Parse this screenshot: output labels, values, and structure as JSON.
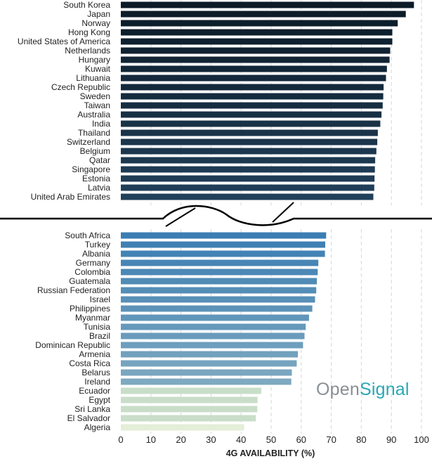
{
  "chart_data": {
    "type": "bar",
    "orientation": "horizontal",
    "xlabel": "4G AVAILABILITY (%)",
    "xlim": [
      0,
      100
    ],
    "xticks": [
      "0",
      "10",
      "20",
      "30",
      "40",
      "50",
      "60",
      "70",
      "80",
      "90",
      "100"
    ],
    "grid": "vertical dashed",
    "axis_break": true,
    "logo": [
      "Open",
      "Signal"
    ],
    "colors": {
      "top_dark": "#0b1a26",
      "top_light": "#21405a",
      "bottom_dark": "#3b7db2",
      "bottom_light": "#7ea9c0",
      "pale_green": "#c9dec9",
      "pale_yellow": "#e4eed8"
    },
    "top_panel": {
      "categories": [
        "South Korea",
        "Japan",
        "Norway",
        "Hong Kong",
        "United States of America",
        "Netherlands",
        "Hungary",
        "Kuwait",
        "Lithuania",
        "Czech Republic",
        "Sweden",
        "Taiwan",
        "Australia",
        "India",
        "Thailand",
        "Switzerland",
        "Belgium",
        "Qatar",
        "Singapore",
        "Estonia",
        "Latvia",
        "United Arab Emirates"
      ],
      "values": [
        97.5,
        94.8,
        92.1,
        90.3,
        90.3,
        89.6,
        89.4,
        88.5,
        88.2,
        87.4,
        87.3,
        87.1,
        86.7,
        86.3,
        85.5,
        85.3,
        85.0,
        84.6,
        84.5,
        84.4,
        84.3,
        84.0
      ]
    },
    "bottom_panel": {
      "categories": [
        "South Africa",
        "Turkey",
        "Albania",
        "Germany",
        "Colombia",
        "Guatemala",
        "Russian Federation",
        "Israel",
        "Philippines",
        "Myanmar",
        "Tunisia",
        "Brazil",
        "Dominican Republic",
        "Armenia",
        "Costa Rica",
        "Belarus",
        "Ireland",
        "Ecuador",
        "Egypt",
        "Sri Lanka",
        "El Salvador",
        "Algeria"
      ],
      "values": [
        68.3,
        68.0,
        67.9,
        65.7,
        65.5,
        65.2,
        65.0,
        64.6,
        63.7,
        62.6,
        61.5,
        61.1,
        60.6,
        58.9,
        58.5,
        56.9,
        56.7,
        46.7,
        45.5,
        45.4,
        44.9,
        41.0
      ]
    }
  }
}
